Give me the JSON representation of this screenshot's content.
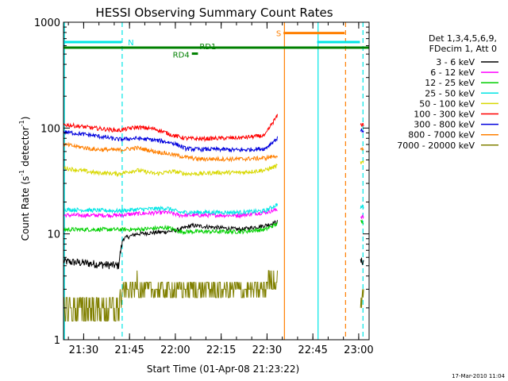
{
  "chart_data": {
    "type": "line",
    "title": "HESSI Observing Summary Count Rates",
    "xlabel": "Start Time (01-Apr-08 21:23:22)",
    "ylabel_main": "Count Rate (s",
    "ylabel_sup1": "-1",
    "ylabel_mid": " detector",
    "ylabel_sup2": "-1",
    "ylabel_end": ")",
    "yscale": "log",
    "ylim": [
      1,
      1000
    ],
    "xlim_min": [
      23.4,
      125.5
    ],
    "x_unit": "minutes after 21:23:22",
    "x_ticks": [
      {
        "t": 6.6,
        "label": "21:30"
      },
      {
        "t": 21.6,
        "label": "21:45"
      },
      {
        "t": 36.6,
        "label": "22:00"
      },
      {
        "t": 51.6,
        "label": "22:15"
      },
      {
        "t": 66.6,
        "label": "22:30"
      },
      {
        "t": 81.6,
        "label": "22:45"
      },
      {
        "t": 96.6,
        "label": "23:00"
      }
    ],
    "y_ticks": [
      {
        "v": 1,
        "label": "1"
      },
      {
        "v": 10,
        "label": "10"
      },
      {
        "v": 100,
        "label": "100"
      },
      {
        "v": 1000,
        "label": "1000"
      }
    ],
    "legend_header": [
      "Det 1,3,4,5,6,9,",
      "FDecim 1, Att 0"
    ],
    "series": [
      {
        "name": "3 - 6 keV",
        "color": "#000000",
        "before": [
          [
            0,
            5.5
          ],
          [
            18,
            5
          ],
          [
            19.5,
            9
          ],
          [
            24,
            10
          ],
          [
            34,
            10.5
          ],
          [
            38,
            11
          ],
          [
            42,
            12
          ],
          [
            50,
            11.5
          ],
          [
            58,
            11
          ],
          [
            66,
            12
          ],
          [
            70,
            13
          ]
        ],
        "after": [
          [
            97.2,
            5.5
          ],
          [
            98.2,
            5.5
          ]
        ]
      },
      {
        "name": "6 - 12 keV",
        "color": "#ff00ff",
        "before": [
          [
            0,
            15
          ],
          [
            18,
            15
          ],
          [
            24,
            15.5
          ],
          [
            34,
            16
          ],
          [
            38,
            15
          ],
          [
            42,
            15
          ],
          [
            50,
            15
          ],
          [
            58,
            15
          ],
          [
            66,
            16
          ],
          [
            70,
            17
          ]
        ],
        "after": [
          [
            97.2,
            14.5
          ],
          [
            98.2,
            14.5
          ]
        ]
      },
      {
        "name": "12 - 25 keV",
        "color": "#00d000",
        "before": [
          [
            0,
            11
          ],
          [
            18,
            11
          ],
          [
            24,
            11
          ],
          [
            34,
            11.5
          ],
          [
            38,
            10.5
          ],
          [
            42,
            10.5
          ],
          [
            50,
            10.5
          ],
          [
            58,
            10.5
          ],
          [
            66,
            11
          ],
          [
            70,
            12.5
          ]
        ],
        "after": [
          [
            97.2,
            13
          ],
          [
            98.2,
            13
          ]
        ]
      },
      {
        "name": "25 - 50 keV",
        "color": "#00e5e5",
        "before": [
          [
            0,
            17
          ],
          [
            18,
            16.5
          ],
          [
            24,
            17
          ],
          [
            34,
            17.5
          ],
          [
            38,
            16
          ],
          [
            42,
            16
          ],
          [
            50,
            16
          ],
          [
            58,
            16
          ],
          [
            66,
            16.5
          ],
          [
            70,
            19
          ]
        ],
        "after": [
          [
            97.2,
            18
          ],
          [
            98.2,
            18
          ]
        ]
      },
      {
        "name": "50 - 100 keV",
        "color": "#d8d800",
        "before": [
          [
            0,
            42
          ],
          [
            10,
            38
          ],
          [
            18,
            37
          ],
          [
            24,
            40
          ],
          [
            30,
            37
          ],
          [
            36,
            39
          ],
          [
            40,
            37
          ],
          [
            44,
            37
          ],
          [
            50,
            38
          ],
          [
            58,
            38
          ],
          [
            66,
            40
          ],
          [
            70,
            44
          ]
        ],
        "after": [
          [
            97.2,
            47
          ],
          [
            98.2,
            47
          ]
        ]
      },
      {
        "name": "100 - 300 keV",
        "color": "#ff0000",
        "before": [
          [
            0,
            108
          ],
          [
            10,
            100
          ],
          [
            18,
            95
          ],
          [
            24,
            102
          ],
          [
            30,
            98
          ],
          [
            36,
            85
          ],
          [
            40,
            80
          ],
          [
            44,
            79
          ],
          [
            50,
            80
          ],
          [
            58,
            81
          ],
          [
            66,
            85
          ],
          [
            70,
            130
          ]
        ],
        "after": [
          [
            97.2,
            108
          ],
          [
            98.2,
            108
          ]
        ]
      },
      {
        "name": "300 - 800 keV",
        "color": "#0000dd",
        "before": [
          [
            0,
            92
          ],
          [
            10,
            85
          ],
          [
            18,
            78
          ],
          [
            24,
            80
          ],
          [
            30,
            77
          ],
          [
            36,
            72
          ],
          [
            40,
            64
          ],
          [
            44,
            63
          ],
          [
            50,
            63
          ],
          [
            58,
            62
          ],
          [
            66,
            64
          ],
          [
            70,
            80
          ]
        ],
        "after": [
          [
            97.2,
            95
          ],
          [
            98.2,
            95
          ]
        ]
      },
      {
        "name": "800 - 7000 keV",
        "color": "#ff7f00",
        "before": [
          [
            0,
            70
          ],
          [
            10,
            63
          ],
          [
            18,
            62
          ],
          [
            24,
            65
          ],
          [
            30,
            60
          ],
          [
            36,
            56
          ],
          [
            40,
            53
          ],
          [
            44,
            51
          ],
          [
            50,
            51
          ],
          [
            58,
            51
          ],
          [
            66,
            52
          ],
          [
            70,
            55
          ]
        ],
        "after": [
          [
            97.2,
            62
          ],
          [
            98.2,
            62
          ]
        ]
      },
      {
        "name": "7000 - 20000 keV",
        "color": "#808000",
        "before": [
          [
            0,
            2
          ],
          [
            18,
            2
          ],
          [
            19.5,
            2.8
          ],
          [
            24,
            3.3
          ],
          [
            30,
            2.8
          ],
          [
            36,
            3
          ],
          [
            42,
            3
          ],
          [
            50,
            3
          ],
          [
            58,
            3
          ],
          [
            66,
            3.2
          ],
          [
            70,
            3.8
          ]
        ],
        "after": [
          [
            97.2,
            2.6
          ],
          [
            98.2,
            2.6
          ]
        ]
      }
    ],
    "state_bars": [
      {
        "text": "N",
        "color": "#00e5e5",
        "y": 650,
        "segments": [
          [
            0,
            19
          ],
          [
            83,
            97
          ]
        ]
      },
      {
        "text": "S",
        "color": "#ff7f00",
        "y": 790,
        "segments": [
          [
            72,
            92
          ]
        ]
      },
      {
        "text": "RD1",
        "color": "#008000",
        "y": 575,
        "segments": [
          [
            0,
            100
          ]
        ]
      },
      {
        "text": "RD4",
        "color": "#008000",
        "y": 505,
        "segments": [
          [
            42,
            44
          ]
        ]
      }
    ],
    "vlines": [
      {
        "t": 0.3,
        "color": "#00e5e5",
        "style": "solid"
      },
      {
        "t": 19.2,
        "color": "#00e5e5",
        "style": "dashed"
      },
      {
        "t": 72.3,
        "color": "#ff7f00",
        "style": "solid"
      },
      {
        "t": 83.3,
        "color": "#00e5e5",
        "style": "solid"
      },
      {
        "t": 92.3,
        "color": "#ff7f00",
        "style": "dashed"
      },
      {
        "t": 98.0,
        "color": "#00e5e5",
        "style": "dashed"
      }
    ]
  },
  "footer": {
    "timestamp": "17-Mar-2010 11:04"
  }
}
